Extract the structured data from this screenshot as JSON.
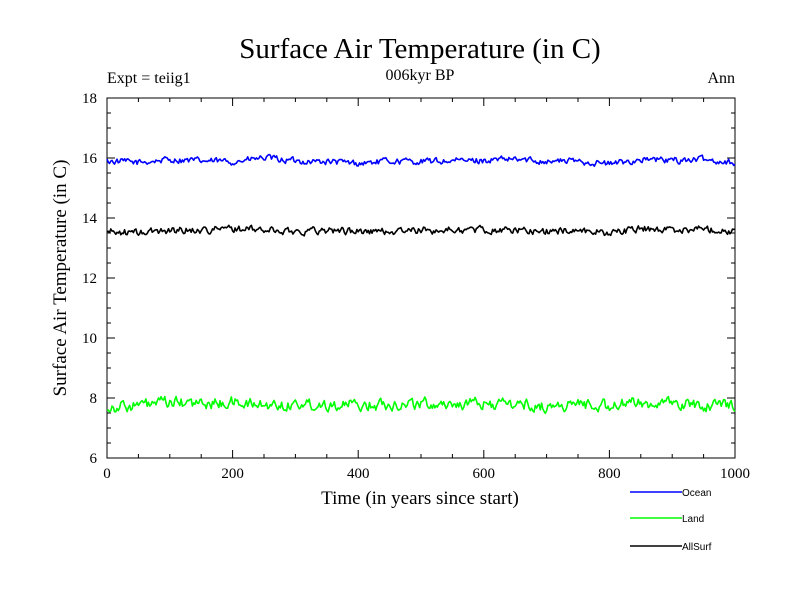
{
  "chart_data": {
    "type": "line",
    "title": "Surface Air Temperature (in C)",
    "subtitle": "006kyr BP",
    "left_label": "Expt = teiig1",
    "right_label": "Ann",
    "xlabel": "Time (in years since start)",
    "ylabel": "Surface Air Temperature (in C)",
    "xlim": [
      0,
      1000
    ],
    "ylim": [
      6,
      18
    ],
    "x_ticks": [
      "0",
      "200",
      "400",
      "600",
      "800",
      "1000"
    ],
    "y_ticks": [
      "6",
      "8",
      "10",
      "12",
      "14",
      "16",
      "18"
    ],
    "grid": false,
    "legend_position": "bottom-right",
    "series": [
      {
        "name": "Ocean",
        "color": "#0000ff",
        "x": [
          0,
          50,
          100,
          150,
          200,
          250,
          300,
          350,
          400,
          450,
          500,
          550,
          600,
          650,
          700,
          750,
          800,
          850,
          900,
          950,
          1000
        ],
        "values": [
          15.9,
          15.85,
          15.95,
          15.9,
          15.88,
          16.0,
          15.9,
          15.88,
          15.82,
          15.9,
          15.88,
          15.9,
          15.92,
          15.95,
          15.9,
          15.9,
          15.8,
          15.95,
          15.92,
          15.95,
          15.85
        ],
        "approx_mean": 15.9,
        "approx_range": [
          15.7,
          16.15
        ]
      },
      {
        "name": "Land",
        "color": "#00ff00",
        "x": [
          0,
          50,
          100,
          150,
          200,
          250,
          300,
          350,
          400,
          450,
          500,
          550,
          600,
          650,
          700,
          750,
          800,
          850,
          900,
          950,
          1000
        ],
        "values": [
          7.7,
          7.75,
          7.85,
          7.8,
          7.85,
          7.75,
          7.8,
          7.8,
          7.75,
          7.8,
          7.82,
          7.8,
          7.8,
          7.8,
          7.7,
          7.8,
          7.75,
          7.85,
          7.8,
          7.75,
          7.8
        ],
        "approx_mean": 7.8,
        "approx_range": [
          7.4,
          8.2
        ]
      },
      {
        "name": "AllSurf",
        "color": "#000000",
        "x": [
          0,
          50,
          100,
          150,
          200,
          250,
          300,
          350,
          400,
          450,
          500,
          550,
          600,
          650,
          700,
          750,
          800,
          850,
          900,
          950,
          1000
        ],
        "values": [
          13.55,
          13.5,
          13.6,
          13.6,
          13.65,
          13.6,
          13.55,
          13.6,
          13.55,
          13.55,
          13.58,
          13.6,
          13.6,
          13.6,
          13.55,
          13.6,
          13.5,
          13.65,
          13.6,
          13.65,
          13.55
        ],
        "approx_mean": 13.58,
        "approx_range": [
          13.3,
          13.8
        ]
      }
    ]
  }
}
